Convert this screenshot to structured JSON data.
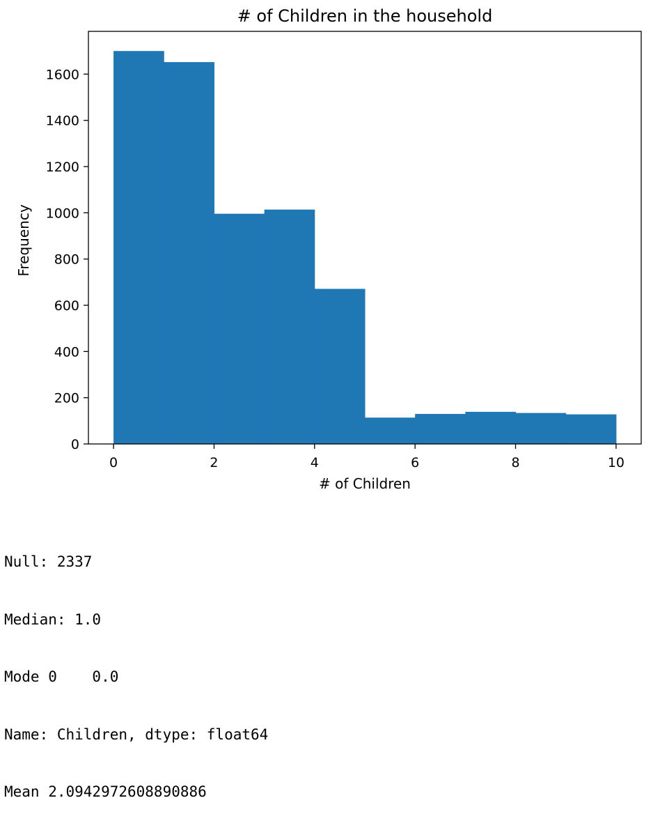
{
  "chart_data": {
    "type": "bar",
    "title": "# of Children in the household",
    "xlabel": "# of Children",
    "ylabel": "Frequency",
    "xlim": [
      -0.5,
      10.5
    ],
    "ylim": [
      0,
      1785
    ],
    "xticks": [
      0,
      2,
      4,
      6,
      8,
      10
    ],
    "yticks": [
      0,
      200,
      400,
      600,
      800,
      1000,
      1200,
      1400,
      1600
    ],
    "bins": [
      {
        "x0": 0,
        "x1": 1,
        "value": 1700
      },
      {
        "x0": 1,
        "x1": 2,
        "value": 1652
      },
      {
        "x0": 2,
        "x1": 3,
        "value": 996
      },
      {
        "x0": 3,
        "x1": 4,
        "value": 1014
      },
      {
        "x0": 4,
        "x1": 5,
        "value": 671
      },
      {
        "x0": 5,
        "x1": 6,
        "value": 114
      },
      {
        "x0": 6,
        "x1": 7,
        "value": 130
      },
      {
        "x0": 7,
        "x1": 8,
        "value": 139
      },
      {
        "x0": 8,
        "x1": 9,
        "value": 134
      },
      {
        "x0": 9,
        "x1": 10,
        "value": 128
      }
    ],
    "bar_color": "#1f77b4",
    "grid": false
  },
  "output": {
    "null_line": "Null: 2337",
    "median_line": "Median: 1.0",
    "mode_line": "Mode 0    0.0",
    "name_line": "Name: Children, dtype: float64",
    "mean_line": "Mean 2.0942972608890886"
  }
}
